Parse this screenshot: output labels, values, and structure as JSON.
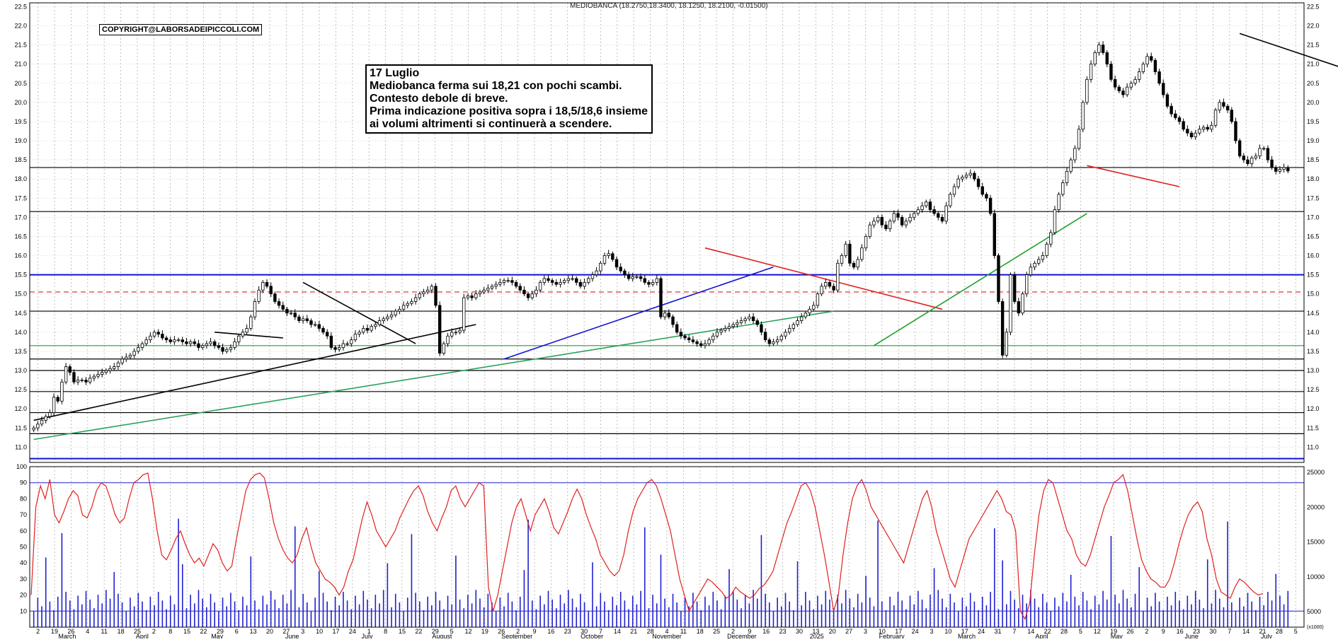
{
  "chart_data": {
    "type": "candlestick",
    "symbol": "MEDIOBANCA",
    "ohlc_header": "MEDIOBANCA (18.2750,18.3400, 18.1250, 18.2100, -0.01500)",
    "copyright": "COPYRIGHT@LABORSADEIPICCOLI.COM",
    "annotation": {
      "title": "17 Luglio",
      "lines": [
        "Mediobanca ferma sui 18,21 con pochi scambi.",
        "Contesto debole di breve.",
        "Prima indicazione positiva sopra i 18,5/18,6 insieme",
        "ai volumi altrimenti si continuerà a scendere."
      ]
    },
    "price_axis": {
      "ylim": [
        10.6,
        22.6
      ],
      "ticks": [
        "22.5",
        "22.0",
        "21.5",
        "21.0",
        "20.5",
        "20.0",
        "19.5",
        "19.0",
        "18.5",
        "18.0",
        "17.5",
        "17.0",
        "16.5",
        "16.0",
        "15.5",
        "15.0",
        "14.5",
        "14.0",
        "13.5",
        "13.0",
        "12.5",
        "12.0",
        "11.5",
        "11.0"
      ]
    },
    "oscillator_axis": {
      "ylim": [
        0,
        100
      ],
      "ticks": [
        "100",
        "90",
        "80",
        "70",
        "60",
        "50",
        "40",
        "30",
        "20",
        "10"
      ],
      "levels": [
        90,
        10
      ]
    },
    "volume_axis": {
      "ticks": [
        "25000",
        "20000",
        "15000",
        "10000",
        "5000"
      ],
      "unit_label": "(x1000)"
    },
    "x_day_labels": [
      "2",
      "19",
      "26",
      "4",
      "11",
      "18",
      "25",
      "2",
      "8",
      "15",
      "22",
      "29",
      "6",
      "13",
      "20",
      "27",
      "3",
      "10",
      "17",
      "24",
      "1",
      "8",
      "15",
      "22",
      "29",
      "5",
      "12",
      "19",
      "26",
      "2",
      "9",
      "16",
      "23",
      "30",
      "7",
      "14",
      "21",
      "28",
      "4",
      "11",
      "18",
      "25",
      "2",
      "9",
      "16",
      "23",
      "30",
      "13",
      "20",
      "27",
      "3",
      "10",
      "17",
      "24",
      "3",
      "10",
      "17",
      "24",
      "31",
      "7",
      "14",
      "22",
      "28",
      "5",
      "12",
      "19",
      "26",
      "2",
      "9",
      "16",
      "23",
      "30",
      "7",
      "14",
      "21",
      "28",
      "5"
    ],
    "x_month_labels": [
      "March",
      "April",
      "May",
      "June",
      "July",
      "August",
      "September",
      "October",
      "November",
      "December",
      "2025",
      "February",
      "March",
      "April",
      "May",
      "June",
      "July"
    ],
    "horizontal_levels": [
      {
        "price": 15.5,
        "color": "#1010d0",
        "style": "solid"
      },
      {
        "price": 10.7,
        "color": "#1010d0",
        "style": "solid"
      },
      {
        "price": 15.05,
        "color": "#dd2020",
        "style": "dashed"
      },
      {
        "price": 18.3,
        "color": "#000000",
        "style": "solid"
      },
      {
        "price": 17.15,
        "color": "#000000",
        "style": "solid"
      },
      {
        "price": 14.55,
        "color": "#000000",
        "style": "solid"
      },
      {
        "price": 13.3,
        "color": "#000000",
        "style": "solid"
      },
      {
        "price": 13.0,
        "color": "#000000",
        "style": "solid"
      },
      {
        "price": 12.45,
        "color": "#000000",
        "style": "solid"
      },
      {
        "price": 11.9,
        "color": "#000000",
        "style": "solid"
      },
      {
        "price": 11.35,
        "color": "#000000",
        "style": "solid"
      },
      {
        "price": 13.65,
        "color": "#1fa02a",
        "style": "solid"
      }
    ],
    "trend_lines": [
      {
        "from": [
          0,
          11.2
        ],
        "to": [
          199,
          14.55
        ],
        "color": "#2ca05a"
      },
      {
        "from": [
          0,
          11.7
        ],
        "to": [
          110,
          14.2
        ],
        "color": "#000000"
      },
      {
        "from": [
          117,
          13.3
        ],
        "to": [
          184,
          15.7
        ],
        "color": "#1010d0"
      },
      {
        "from": [
          167,
          16.2
        ],
        "to": [
          226,
          14.6
        ],
        "color": "#dd2020"
      },
      {
        "from": [
          209,
          13.65
        ],
        "to": [
          262,
          17.1
        ],
        "color": "#1fa02a"
      },
      {
        "from": [
          262,
          18.35
        ],
        "to": [
          285,
          17.8
        ],
        "color": "#dd2020"
      },
      {
        "from": [
          300,
          21.8
        ],
        "to": [
          337,
          20.5
        ],
        "color": "#000000"
      },
      {
        "from": [
          45,
          14.0
        ],
        "to": [
          62,
          13.85
        ],
        "color": "#000000"
      },
      {
        "from": [
          67,
          15.3
        ],
        "to": [
          95,
          13.7
        ],
        "color": "#000000"
      }
    ],
    "closes": [
      11.5,
      11.6,
      11.7,
      11.8,
      11.9,
      12.3,
      12.2,
      12.7,
      13.1,
      12.95,
      12.7,
      12.75,
      12.75,
      12.7,
      12.8,
      12.85,
      12.9,
      12.95,
      13.0,
      13.05,
      13.1,
      13.2,
      13.3,
      13.35,
      13.4,
      13.5,
      13.6,
      13.7,
      13.8,
      13.9,
      14.0,
      13.95,
      13.85,
      13.8,
      13.75,
      13.8,
      13.8,
      13.75,
      13.7,
      13.75,
      13.7,
      13.6,
      13.65,
      13.7,
      13.75,
      13.65,
      13.6,
      13.5,
      13.55,
      13.6,
      13.75,
      13.9,
      14.0,
      14.1,
      14.4,
      14.8,
      15.1,
      15.3,
      15.2,
      15.0,
      14.8,
      14.7,
      14.6,
      14.5,
      14.5,
      14.4,
      14.3,
      14.35,
      14.3,
      14.2,
      14.2,
      14.1,
      14.0,
      13.9,
      13.6,
      13.55,
      13.6,
      13.7,
      13.7,
      13.8,
      13.95,
      14.0,
      14.1,
      14.05,
      14.15,
      14.2,
      14.3,
      14.35,
      14.4,
      14.45,
      14.55,
      14.6,
      14.7,
      14.75,
      14.8,
      14.9,
      15.0,
      15.05,
      15.1,
      15.2,
      14.7,
      13.45,
      13.7,
      13.9,
      14.0,
      14.0,
      14.05,
      14.9,
      14.95,
      14.9,
      15.0,
      15.05,
      15.1,
      15.15,
      15.2,
      15.25,
      15.3,
      15.35,
      15.35,
      15.3,
      15.2,
      15.1,
      15.0,
      14.9,
      15.0,
      15.1,
      15.3,
      15.4,
      15.35,
      15.3,
      15.25,
      15.3,
      15.35,
      15.4,
      15.4,
      15.3,
      15.2,
      15.3,
      15.4,
      15.5,
      15.6,
      15.8,
      16.0,
      16.05,
      15.9,
      15.7,
      15.6,
      15.5,
      15.4,
      15.45,
      15.45,
      15.4,
      15.3,
      15.25,
      15.3,
      15.4,
      14.4,
      14.5,
      14.4,
      14.2,
      14.0,
      13.9,
      13.85,
      13.8,
      13.75,
      13.7,
      13.65,
      13.7,
      13.8,
      13.9,
      14.0,
      14.05,
      14.1,
      14.15,
      14.2,
      14.25,
      14.3,
      14.35,
      14.4,
      14.3,
      14.2,
      14.0,
      13.8,
      13.7,
      13.75,
      13.8,
      13.9,
      14.0,
      14.1,
      14.2,
      14.3,
      14.4,
      14.5,
      14.6,
      14.7,
      15.0,
      15.2,
      15.3,
      15.2,
      15.1,
      15.8,
      16.0,
      16.3,
      15.8,
      15.7,
      15.9,
      16.2,
      16.5,
      16.8,
      16.9,
      17.0,
      16.8,
      16.7,
      16.9,
      17.1,
      17.0,
      16.8,
      16.9,
      17.0,
      17.1,
      17.2,
      17.3,
      17.4,
      17.2,
      17.1,
      17.0,
      16.9,
      17.3,
      17.6,
      17.8,
      18.0,
      18.05,
      18.1,
      18.15,
      18.0,
      17.8,
      17.6,
      17.5,
      17.1,
      16.0,
      14.8,
      13.4,
      14.0,
      15.5,
      14.8,
      14.5,
      15.0,
      15.5,
      15.7,
      15.8,
      15.9,
      16.0,
      16.3,
      16.6,
      17.2,
      17.6,
      17.9,
      18.2,
      18.5,
      18.8,
      19.3,
      20.0,
      20.6,
      21.0,
      21.3,
      21.5,
      21.3,
      21.0,
      20.6,
      20.4,
      20.3,
      20.2,
      20.4,
      20.5,
      20.6,
      20.8,
      21.0,
      21.2,
      21.1,
      20.8,
      20.5,
      20.2,
      19.9,
      19.7,
      19.6,
      19.5,
      19.3,
      19.2,
      19.1,
      19.2,
      19.3,
      19.35,
      19.3,
      19.4,
      19.8,
      20.0,
      19.9,
      19.8,
      19.5,
      19.0,
      18.6,
      18.5,
      18.4,
      18.55,
      18.6,
      18.8,
      18.8,
      18.5,
      18.3,
      18.2,
      18.25,
      18.3,
      18.21
    ],
    "oscillator": [
      20,
      75,
      88,
      80,
      92,
      70,
      65,
      72,
      80,
      85,
      82,
      70,
      68,
      75,
      85,
      90,
      88,
      80,
      70,
      65,
      68,
      80,
      90,
      92,
      95,
      96,
      80,
      60,
      45,
      42,
      48,
      55,
      60,
      52,
      45,
      40,
      43,
      38,
      45,
      52,
      48,
      40,
      35,
      38,
      55,
      70,
      85,
      92,
      95,
      96,
      93,
      80,
      65,
      55,
      48,
      43,
      40,
      45,
      55,
      62,
      50,
      40,
      35,
      30,
      28,
      25,
      20,
      25,
      35,
      42,
      55,
      68,
      78,
      70,
      60,
      55,
      50,
      55,
      60,
      68,
      74,
      80,
      85,
      88,
      82,
      72,
      65,
      60,
      68,
      75,
      85,
      88,
      80,
      75,
      80,
      85,
      90,
      88,
      25,
      10,
      20,
      35,
      50,
      65,
      75,
      80,
      70,
      60,
      70,
      75,
      80,
      72,
      62,
      58,
      65,
      72,
      80,
      86,
      80,
      70,
      62,
      55,
      45,
      40,
      35,
      32,
      35,
      45,
      60,
      72,
      80,
      85,
      90,
      92,
      88,
      80,
      70,
      60,
      45,
      30,
      20,
      10,
      15,
      20,
      25,
      30,
      28,
      25,
      22,
      18,
      20,
      25,
      22,
      20,
      18,
      20,
      24,
      26,
      30,
      35,
      45,
      55,
      65,
      72,
      80,
      88,
      90,
      85,
      75,
      60,
      45,
      28,
      10,
      20,
      45,
      65,
      80,
      88,
      92,
      85,
      75,
      70,
      65,
      60,
      55,
      50,
      45,
      40,
      50,
      60,
      70,
      80,
      85,
      75,
      60,
      50,
      40,
      30,
      25,
      35,
      45,
      55,
      60,
      65,
      70,
      75,
      80,
      85,
      80,
      72,
      70,
      60,
      10,
      5,
      15,
      45,
      70,
      85,
      92,
      90,
      80,
      70,
      60,
      55,
      45,
      40,
      38,
      45,
      55,
      65,
      75,
      82,
      90,
      92,
      95,
      85,
      70,
      55,
      42,
      35,
      30,
      28,
      25,
      25,
      30,
      40,
      52,
      62,
      70,
      75,
      78,
      72,
      55,
      45,
      30,
      22,
      20,
      18,
      25,
      30,
      28,
      25,
      22,
      20,
      21
    ],
    "volume_scale_note": "thousands"
  }
}
